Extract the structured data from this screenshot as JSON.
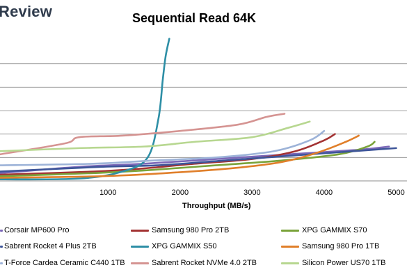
{
  "brand": "Review",
  "chart_data": {
    "type": "line",
    "title": "Sequential Read 64K",
    "xlabel": "Throughput (MB/s)",
    "ylabel": "",
    "xlim": [
      -500,
      5150
    ],
    "ylim": [
      0,
      9
    ],
    "xticks": [
      1000,
      2000,
      3000,
      4000,
      5000
    ],
    "grid": "horizontal",
    "legend_position": "bottom",
    "series": [
      {
        "name": "Corsair MP600 Pro",
        "color": "#7b68b8",
        "x": [
          -500,
          600,
          1500,
          2500,
          3500,
          4500,
          4900
        ],
        "y": [
          0.5,
          0.9,
          1.1,
          1.4,
          1.7,
          2.0,
          2.2
        ]
      },
      {
        "name": "Samsung 980 Pro 2TB",
        "color": "#a33333",
        "x": [
          -500,
          800,
          1500,
          2200,
          3000,
          3600,
          4000,
          4150
        ],
        "y": [
          0.4,
          0.6,
          0.8,
          1.1,
          1.4,
          1.9,
          2.6,
          3.0
        ]
      },
      {
        "name": "XPG GAMMIX S70",
        "color": "#7aa33a",
        "x": [
          -500,
          800,
          1600,
          2500,
          3400,
          4200,
          4600,
          4700
        ],
        "y": [
          0.3,
          0.5,
          0.7,
          1.0,
          1.3,
          1.7,
          2.2,
          2.5
        ]
      },
      {
        "name": "Sabrent Rocket 4 Plus 2TB",
        "color": "#3d5599",
        "x": [
          -500,
          900,
          1700,
          2600,
          3500,
          4400,
          5000
        ],
        "y": [
          0.6,
          0.9,
          1.0,
          1.3,
          1.6,
          1.9,
          2.1
        ]
      },
      {
        "name": "XPG GAMMIX S50",
        "color": "#2e8fa6",
        "x": [
          -500,
          600,
          1200,
          1550,
          1700,
          1760,
          1800,
          1850
        ],
        "y": [
          0.1,
          0.15,
          0.6,
          1.5,
          4.0,
          6.5,
          8.0,
          9.1
        ]
      },
      {
        "name": "Samsung 980 Pro 1TB",
        "color": "#e07f2a",
        "x": [
          -500,
          900,
          1800,
          2700,
          3400,
          3900,
          4300,
          4480
        ],
        "y": [
          0.2,
          0.3,
          0.5,
          0.8,
          1.2,
          1.8,
          2.5,
          2.9
        ]
      },
      {
        "name": "T-Force Cardea Ceramic C440 1TB",
        "color": "#9db3d8",
        "x": [
          -500,
          800,
          1600,
          2500,
          3300,
          3800,
          4000
        ],
        "y": [
          1.0,
          1.1,
          1.3,
          1.5,
          1.9,
          2.6,
          3.2
        ]
      },
      {
        "name": "Sabrent Rocket NVMe 4.0 2TB",
        "color": "#d59492",
        "x": [
          -500,
          400,
          600,
          1200,
          2000,
          2800,
          3200,
          3450
        ],
        "y": [
          1.7,
          2.4,
          2.8,
          2.9,
          3.2,
          3.6,
          4.1,
          4.3
        ]
      },
      {
        "name": "Silicon Power US70 1TB",
        "color": "#b7d790",
        "x": [
          -500,
          600,
          1500,
          2200,
          3000,
          3500,
          3800
        ],
        "y": [
          1.9,
          2.1,
          2.2,
          2.5,
          2.8,
          3.4,
          3.8
        ]
      }
    ]
  }
}
